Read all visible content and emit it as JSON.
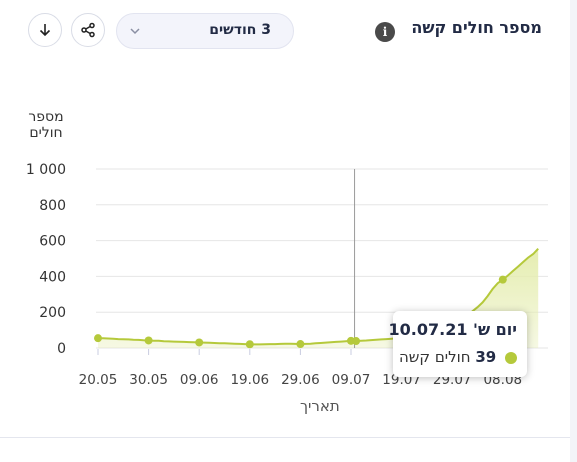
{
  "header": {
    "title": "מספר חולים קשה",
    "info_icon": "info-icon",
    "period_selected": "3 חודשים",
    "share_icon": "share-icon",
    "download_icon": "download-icon"
  },
  "tooltip": {
    "date": "יום ש' 10.07.21",
    "value": "39",
    "value_label": "חולים קשה"
  },
  "colors": {
    "series": "#b5c93b",
    "fill": "#e5edb0",
    "grid": "#e6e6e6"
  },
  "chart_data": {
    "type": "area",
    "ylabel": "מספר חולים",
    "xlabel": "תאריך",
    "ylim": [
      0,
      1000
    ],
    "yticks": [
      0,
      200,
      400,
      600,
      800,
      1000
    ],
    "ytick_labels": [
      "0",
      "200",
      "400",
      "600",
      "800",
      "1 000"
    ],
    "xtick_labels": [
      "20.05",
      "30.05",
      "09.06",
      "19.06",
      "29.06",
      "09.07",
      "19.07",
      "29.07",
      "08.08"
    ],
    "x_start": "20.05",
    "series": [
      {
        "x": [
          "20.05",
          "21.05",
          "22.05",
          "23.05",
          "24.05",
          "25.05",
          "26.05",
          "27.05",
          "28.05",
          "29.05",
          "30.05",
          "31.05",
          "01.06",
          "02.06",
          "03.06",
          "04.06",
          "05.06",
          "06.06",
          "07.06",
          "08.06",
          "09.06",
          "10.06",
          "11.06",
          "12.06",
          "13.06",
          "14.06",
          "15.06",
          "16.06",
          "17.06",
          "18.06",
          "19.06",
          "20.06",
          "21.06",
          "22.06",
          "23.06",
          "24.06",
          "25.06",
          "26.06",
          "27.06",
          "28.06",
          "29.06",
          "30.06",
          "01.07",
          "02.07",
          "03.07",
          "04.07",
          "05.07",
          "06.07",
          "07.07",
          "08.07",
          "09.07",
          "10.07",
          "11.07",
          "12.07",
          "13.07",
          "14.07",
          "15.07",
          "16.07",
          "17.07",
          "18.07",
          "19.07",
          "20.07",
          "21.07",
          "22.07",
          "23.07",
          "24.07",
          "25.07",
          "26.07",
          "27.07",
          "28.07",
          "29.07",
          "30.07",
          "31.07",
          "01.08",
          "02.08",
          "03.08",
          "04.08",
          "05.08",
          "06.08",
          "07.08",
          "08.08",
          "09.08",
          "10.08",
          "11.08",
          "12.08",
          "13.08",
          "14.08",
          "15.08"
        ],
        "values": [
          55,
          54,
          53,
          52,
          50,
          49,
          48,
          46,
          45,
          43,
          42,
          41,
          40,
          38,
          37,
          36,
          35,
          34,
          33,
          32,
          31,
          30,
          29,
          28,
          27,
          26,
          25,
          24,
          23,
          22,
          21,
          20,
          20,
          21,
          22,
          22,
          23,
          24,
          24,
          23,
          22,
          23,
          24,
          26,
          28,
          30,
          32,
          34,
          36,
          38,
          40,
          39,
          41,
          42,
          44,
          46,
          48,
          50,
          52,
          55,
          58,
          62,
          67,
          72,
          78,
          85,
          93,
          102,
          112,
          124,
          138,
          152,
          168,
          185,
          205,
          228,
          255,
          290,
          330,
          362,
          382,
          405,
          430,
          455,
          480,
          505,
          525,
          555
        ]
      }
    ],
    "markers_at": [
      0,
      10,
      20,
      30,
      40,
      50,
      51,
      80
    ]
  }
}
